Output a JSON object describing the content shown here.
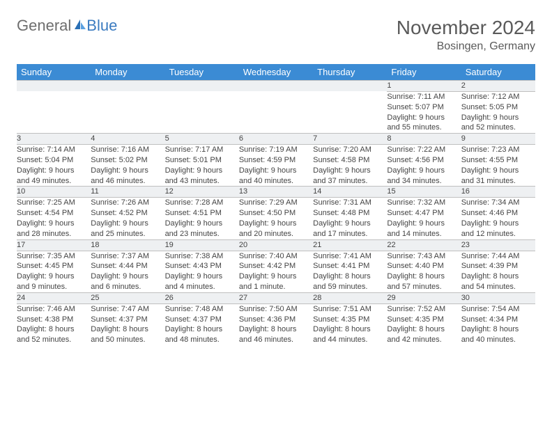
{
  "logo": {
    "word1": "General",
    "word2": "Blue"
  },
  "title": "November 2024",
  "location": "Bosingen, Germany",
  "colors": {
    "header_bg": "#3b8bd4",
    "header_text": "#ffffff",
    "daynum_bg": "#eef0f2",
    "border": "#bfbfbf",
    "text": "#444444",
    "logo_gray": "#6e6e6e",
    "logo_blue": "#3b7bc0",
    "title_color": "#5a5a5a"
  },
  "day_headers": [
    "Sunday",
    "Monday",
    "Tuesday",
    "Wednesday",
    "Thursday",
    "Friday",
    "Saturday"
  ],
  "weeks": [
    {
      "nums": [
        "",
        "",
        "",
        "",
        "",
        "1",
        "2"
      ],
      "cells": [
        null,
        null,
        null,
        null,
        null,
        {
          "sunrise": "Sunrise: 7:11 AM",
          "sunset": "Sunset: 5:07 PM",
          "day1": "Daylight: 9 hours",
          "day2": "and 55 minutes."
        },
        {
          "sunrise": "Sunrise: 7:12 AM",
          "sunset": "Sunset: 5:05 PM",
          "day1": "Daylight: 9 hours",
          "day2": "and 52 minutes."
        }
      ]
    },
    {
      "nums": [
        "3",
        "4",
        "5",
        "6",
        "7",
        "8",
        "9"
      ],
      "cells": [
        {
          "sunrise": "Sunrise: 7:14 AM",
          "sunset": "Sunset: 5:04 PM",
          "day1": "Daylight: 9 hours",
          "day2": "and 49 minutes."
        },
        {
          "sunrise": "Sunrise: 7:16 AM",
          "sunset": "Sunset: 5:02 PM",
          "day1": "Daylight: 9 hours",
          "day2": "and 46 minutes."
        },
        {
          "sunrise": "Sunrise: 7:17 AM",
          "sunset": "Sunset: 5:01 PM",
          "day1": "Daylight: 9 hours",
          "day2": "and 43 minutes."
        },
        {
          "sunrise": "Sunrise: 7:19 AM",
          "sunset": "Sunset: 4:59 PM",
          "day1": "Daylight: 9 hours",
          "day2": "and 40 minutes."
        },
        {
          "sunrise": "Sunrise: 7:20 AM",
          "sunset": "Sunset: 4:58 PM",
          "day1": "Daylight: 9 hours",
          "day2": "and 37 minutes."
        },
        {
          "sunrise": "Sunrise: 7:22 AM",
          "sunset": "Sunset: 4:56 PM",
          "day1": "Daylight: 9 hours",
          "day2": "and 34 minutes."
        },
        {
          "sunrise": "Sunrise: 7:23 AM",
          "sunset": "Sunset: 4:55 PM",
          "day1": "Daylight: 9 hours",
          "day2": "and 31 minutes."
        }
      ]
    },
    {
      "nums": [
        "10",
        "11",
        "12",
        "13",
        "14",
        "15",
        "16"
      ],
      "cells": [
        {
          "sunrise": "Sunrise: 7:25 AM",
          "sunset": "Sunset: 4:54 PM",
          "day1": "Daylight: 9 hours",
          "day2": "and 28 minutes."
        },
        {
          "sunrise": "Sunrise: 7:26 AM",
          "sunset": "Sunset: 4:52 PM",
          "day1": "Daylight: 9 hours",
          "day2": "and 25 minutes."
        },
        {
          "sunrise": "Sunrise: 7:28 AM",
          "sunset": "Sunset: 4:51 PM",
          "day1": "Daylight: 9 hours",
          "day2": "and 23 minutes."
        },
        {
          "sunrise": "Sunrise: 7:29 AM",
          "sunset": "Sunset: 4:50 PM",
          "day1": "Daylight: 9 hours",
          "day2": "and 20 minutes."
        },
        {
          "sunrise": "Sunrise: 7:31 AM",
          "sunset": "Sunset: 4:48 PM",
          "day1": "Daylight: 9 hours",
          "day2": "and 17 minutes."
        },
        {
          "sunrise": "Sunrise: 7:32 AM",
          "sunset": "Sunset: 4:47 PM",
          "day1": "Daylight: 9 hours",
          "day2": "and 14 minutes."
        },
        {
          "sunrise": "Sunrise: 7:34 AM",
          "sunset": "Sunset: 4:46 PM",
          "day1": "Daylight: 9 hours",
          "day2": "and 12 minutes."
        }
      ]
    },
    {
      "nums": [
        "17",
        "18",
        "19",
        "20",
        "21",
        "22",
        "23"
      ],
      "cells": [
        {
          "sunrise": "Sunrise: 7:35 AM",
          "sunset": "Sunset: 4:45 PM",
          "day1": "Daylight: 9 hours",
          "day2": "and 9 minutes."
        },
        {
          "sunrise": "Sunrise: 7:37 AM",
          "sunset": "Sunset: 4:44 PM",
          "day1": "Daylight: 9 hours",
          "day2": "and 6 minutes."
        },
        {
          "sunrise": "Sunrise: 7:38 AM",
          "sunset": "Sunset: 4:43 PM",
          "day1": "Daylight: 9 hours",
          "day2": "and 4 minutes."
        },
        {
          "sunrise": "Sunrise: 7:40 AM",
          "sunset": "Sunset: 4:42 PM",
          "day1": "Daylight: 9 hours",
          "day2": "and 1 minute."
        },
        {
          "sunrise": "Sunrise: 7:41 AM",
          "sunset": "Sunset: 4:41 PM",
          "day1": "Daylight: 8 hours",
          "day2": "and 59 minutes."
        },
        {
          "sunrise": "Sunrise: 7:43 AM",
          "sunset": "Sunset: 4:40 PM",
          "day1": "Daylight: 8 hours",
          "day2": "and 57 minutes."
        },
        {
          "sunrise": "Sunrise: 7:44 AM",
          "sunset": "Sunset: 4:39 PM",
          "day1": "Daylight: 8 hours",
          "day2": "and 54 minutes."
        }
      ]
    },
    {
      "nums": [
        "24",
        "25",
        "26",
        "27",
        "28",
        "29",
        "30"
      ],
      "cells": [
        {
          "sunrise": "Sunrise: 7:46 AM",
          "sunset": "Sunset: 4:38 PM",
          "day1": "Daylight: 8 hours",
          "day2": "and 52 minutes."
        },
        {
          "sunrise": "Sunrise: 7:47 AM",
          "sunset": "Sunset: 4:37 PM",
          "day1": "Daylight: 8 hours",
          "day2": "and 50 minutes."
        },
        {
          "sunrise": "Sunrise: 7:48 AM",
          "sunset": "Sunset: 4:37 PM",
          "day1": "Daylight: 8 hours",
          "day2": "and 48 minutes."
        },
        {
          "sunrise": "Sunrise: 7:50 AM",
          "sunset": "Sunset: 4:36 PM",
          "day1": "Daylight: 8 hours",
          "day2": "and 46 minutes."
        },
        {
          "sunrise": "Sunrise: 7:51 AM",
          "sunset": "Sunset: 4:35 PM",
          "day1": "Daylight: 8 hours",
          "day2": "and 44 minutes."
        },
        {
          "sunrise": "Sunrise: 7:52 AM",
          "sunset": "Sunset: 4:35 PM",
          "day1": "Daylight: 8 hours",
          "day2": "and 42 minutes."
        },
        {
          "sunrise": "Sunrise: 7:54 AM",
          "sunset": "Sunset: 4:34 PM",
          "day1": "Daylight: 8 hours",
          "day2": "and 40 minutes."
        }
      ]
    }
  ]
}
